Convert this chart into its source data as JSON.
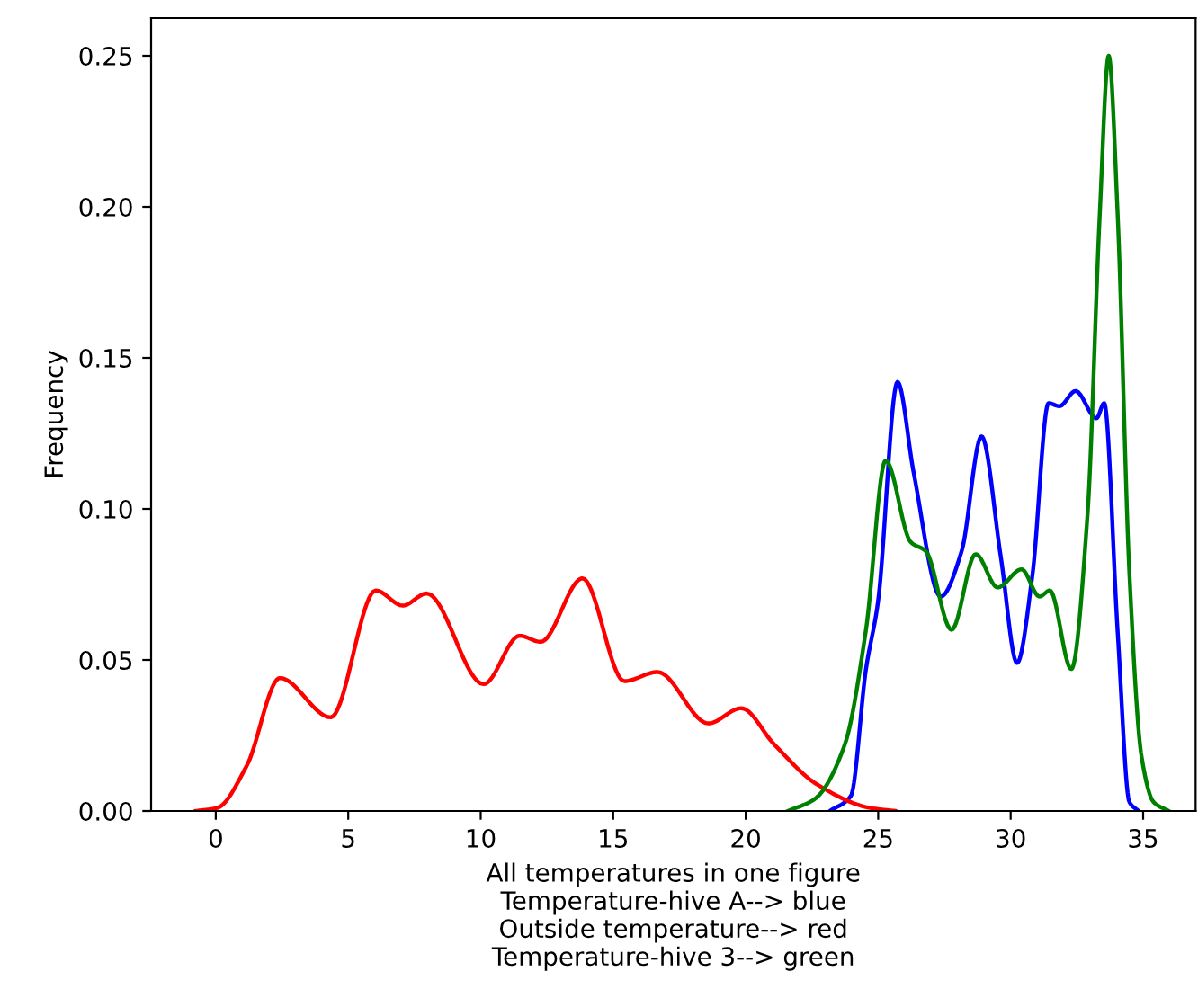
{
  "chart_data": {
    "type": "line",
    "xlabel": "All temperatures in one figure\nTemperature-hive A--> blue\nOutside temperature--> red\nTemperature-hive 3--> green",
    "ylabel": "Frequency",
    "series": [
      {
        "color": "#0000ff",
        "x": [
          23.18,
          23.97,
          24.54,
          24.99,
          25.73,
          26.34,
          27.36,
          28.15,
          28.9,
          29.63,
          30.24,
          30.82,
          31.43,
          31.84,
          32.45,
          33.24,
          33.53,
          34.04,
          34.48,
          34.82
        ],
        "values": [
          0,
          0.005,
          0.047,
          0.069,
          0.142,
          0.112,
          0.071,
          0.086,
          0.124,
          0.084,
          0.049,
          0.078,
          0.135,
          0.134,
          0.139,
          0.13,
          0.135,
          0.059,
          0.003,
          0
        ]
      },
      {
        "color": "#ff0000",
        "x": [
          -0.75,
          0.05,
          1.17,
          2.42,
          4.34,
          6.04,
          7.06,
          7.96,
          10.11,
          11.47,
          12.26,
          13.84,
          15.42,
          16.67,
          18.59,
          19.83,
          21.08,
          22.66,
          24.7,
          25.64
        ],
        "values": [
          0,
          0.001,
          0.015,
          0.044,
          0.031,
          0.073,
          0.068,
          0.072,
          0.042,
          0.058,
          0.056,
          0.077,
          0.043,
          0.046,
          0.029,
          0.034,
          0.022,
          0.009,
          0.001,
          0
        ]
      },
      {
        "color": "#008000",
        "x": [
          21.6,
          22.61,
          23.74,
          24.54,
          25.28,
          26.23,
          26.8,
          27.77,
          28.68,
          29.51,
          30.41,
          31.09,
          31.48,
          32.29,
          32.9,
          33.36,
          33.7,
          34.04,
          34.48,
          34.94,
          35.39,
          35.96
        ],
        "values": [
          0,
          0.004,
          0.022,
          0.06,
          0.116,
          0.089,
          0.086,
          0.06,
          0.085,
          0.074,
          0.08,
          0.071,
          0.073,
          0.047,
          0.098,
          0.197,
          0.25,
          0.197,
          0.079,
          0.018,
          0.003,
          0
        ]
      }
    ],
    "xlim": [
      -2.44,
      36.98
    ],
    "ylim": [
      0,
      0.2625
    ],
    "xticks": [
      0,
      5,
      10,
      15,
      20,
      25,
      30,
      35
    ],
    "yticks": [
      {
        "value": 0,
        "label": "0.00"
      },
      {
        "value": 0.05,
        "label": "0.05"
      },
      {
        "value": 0.1,
        "label": "0.10"
      },
      {
        "value": 0.15,
        "label": "0.15"
      },
      {
        "value": 0.2,
        "label": "0.20"
      },
      {
        "value": 0.25,
        "label": "0.25"
      }
    ],
    "grid": false
  }
}
